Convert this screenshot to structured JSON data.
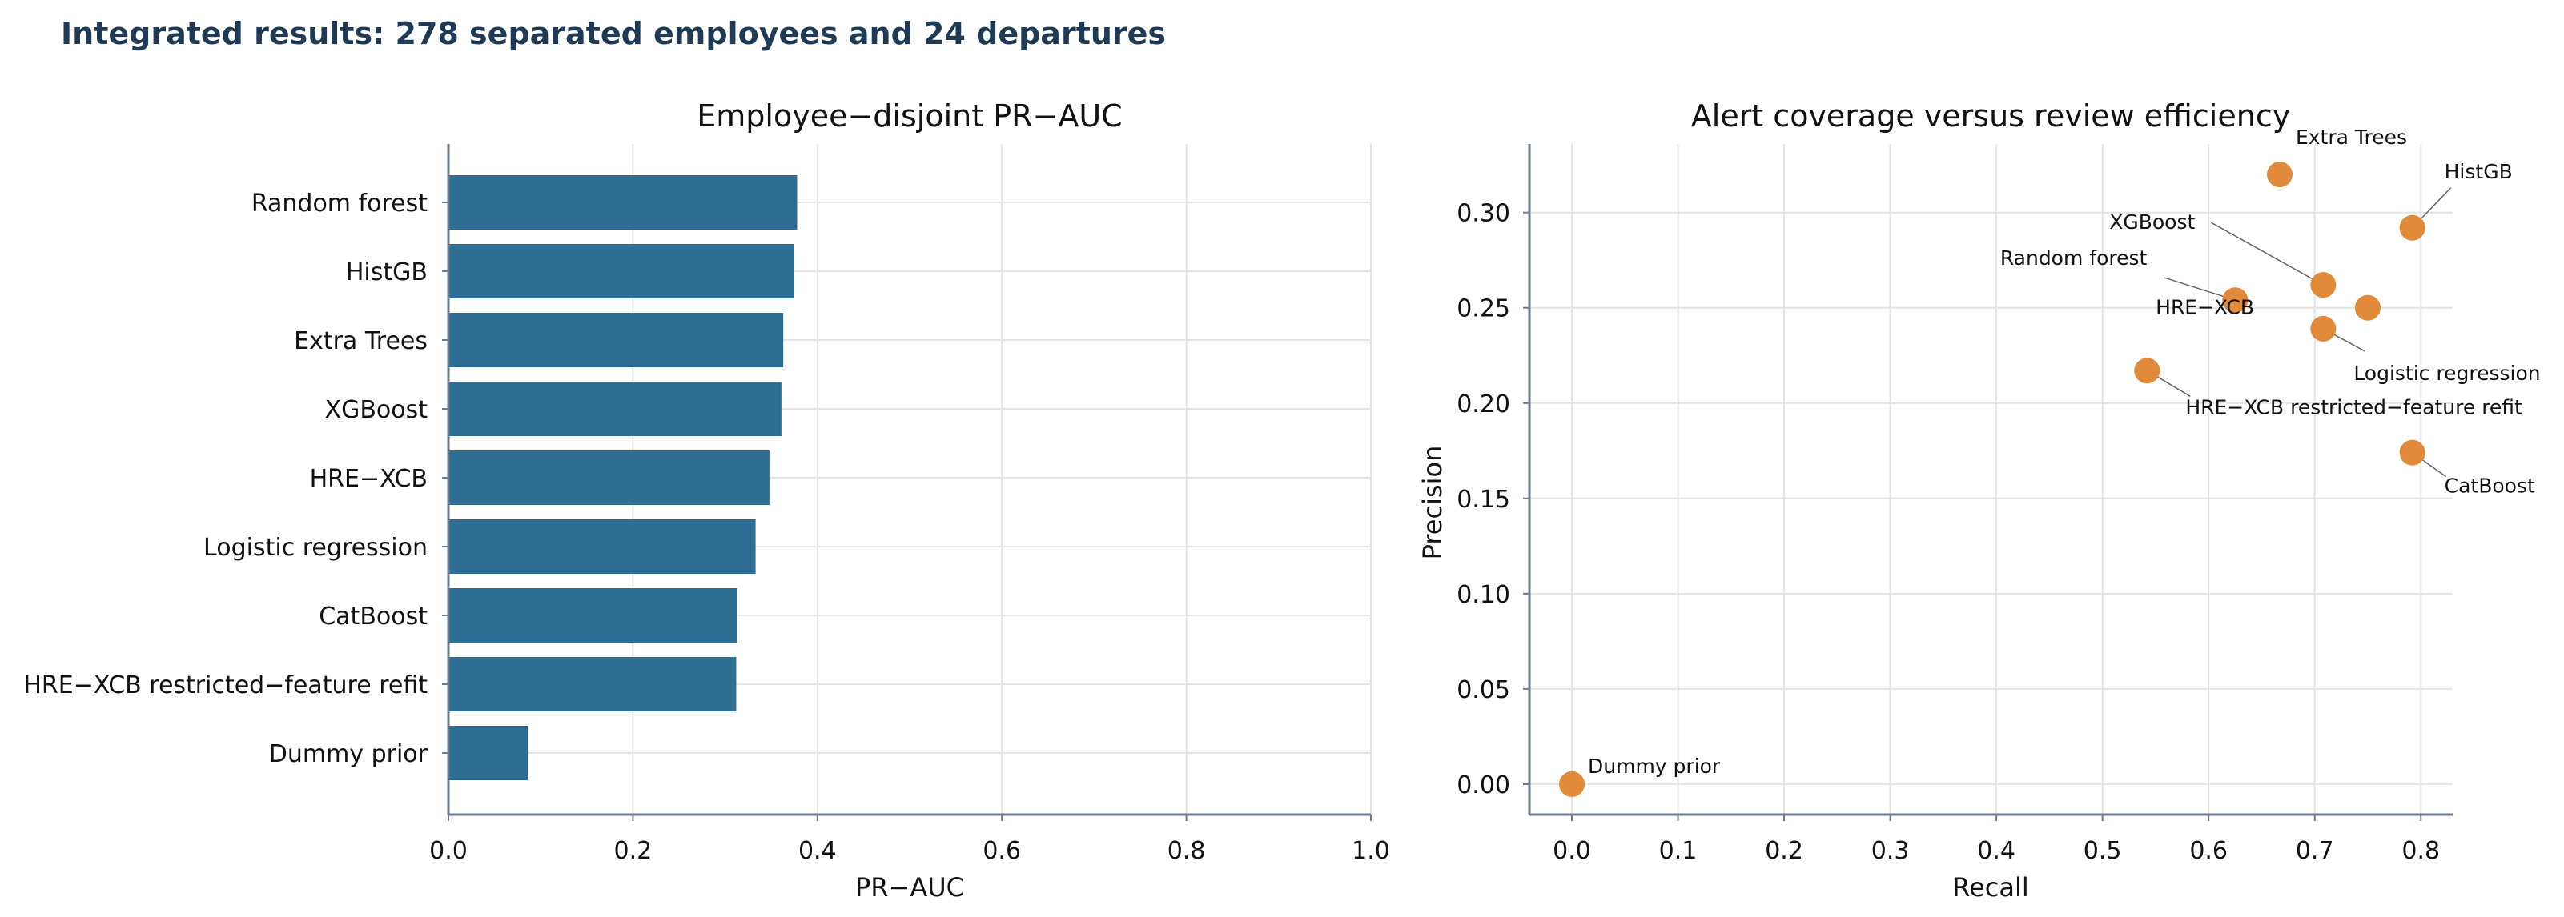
{
  "suptitle": "Integrated results: 278 separated employees and 24 departures",
  "colors": {
    "bar": "#2e6e94",
    "point": "#e08a3a",
    "axis": "#6b7a8c",
    "grid": "#e4e4e4",
    "title": "#1f3a55"
  },
  "chart_data": [
    {
      "type": "bar",
      "orientation": "horizontal",
      "title": "Employee−disjoint PR−AUC",
      "xlabel": "PR−AUC",
      "ylabel": "",
      "xlim": [
        0,
        1.0
      ],
      "xticks": [
        "0.0",
        "0.2",
        "0.4",
        "0.6",
        "0.8",
        "1.0"
      ],
      "grid": true,
      "categories": [
        "Random forest",
        "HistGB",
        "Extra Trees",
        "XGBoost",
        "HRE−XCB",
        "Logistic regression",
        "CatBoost",
        "HRE−XCB restricted−feature refit",
        "Dummy prior"
      ],
      "values": [
        0.378,
        0.375,
        0.363,
        0.361,
        0.348,
        0.333,
        0.313,
        0.312,
        0.086
      ]
    },
    {
      "type": "scatter",
      "title": "Alert coverage versus review efficiency",
      "xlabel": "Recall",
      "ylabel": "Precision",
      "xlim": [
        -0.04,
        0.83
      ],
      "ylim": [
        -0.016,
        0.336
      ],
      "xticks": [
        "0.0",
        "0.1",
        "0.2",
        "0.3",
        "0.4",
        "0.5",
        "0.6",
        "0.7",
        "0.8"
      ],
      "yticks": [
        "0.00",
        "0.05",
        "0.10",
        "0.15",
        "0.20",
        "0.25",
        "0.30"
      ],
      "grid": true,
      "points": [
        {
          "label": "Extra Trees",
          "x": 0.667,
          "y": 0.32
        },
        {
          "label": "HistGB",
          "x": 0.792,
          "y": 0.292
        },
        {
          "label": "XGBoost",
          "x": 0.708,
          "y": 0.262
        },
        {
          "label": "Random forest",
          "x": 0.625,
          "y": 0.254
        },
        {
          "label": "HRE−XCB",
          "x": 0.75,
          "y": 0.25
        },
        {
          "label": "Logistic regression",
          "x": 0.708,
          "y": 0.239
        },
        {
          "label": "HRE−XCB restricted−feature refit",
          "x": 0.542,
          "y": 0.217
        },
        {
          "label": "CatBoost",
          "x": 0.792,
          "y": 0.174
        },
        {
          "label": "Dummy prior",
          "x": 0.0,
          "y": 0.0
        }
      ]
    }
  ]
}
